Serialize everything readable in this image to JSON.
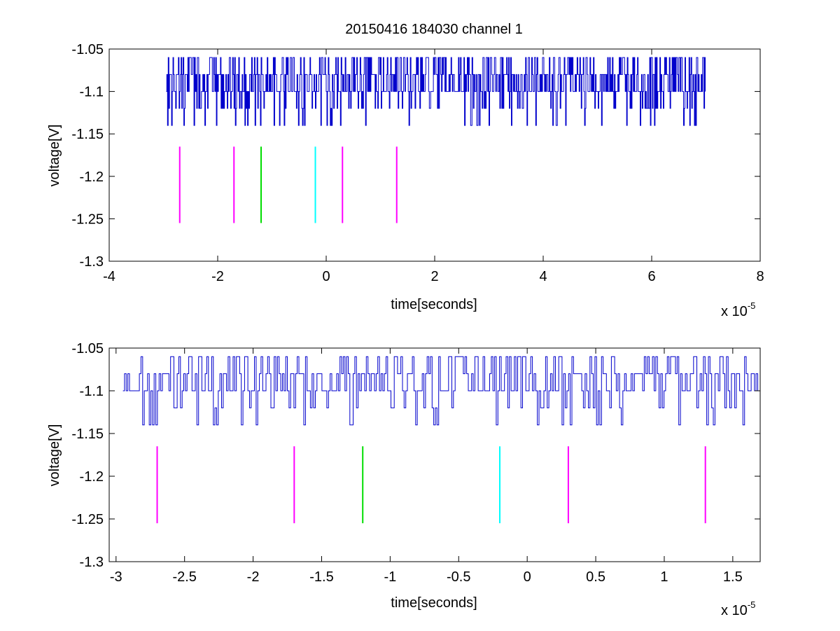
{
  "title": "20150416 184030 channel 1",
  "colors": {
    "signal": "#0000cc",
    "magenta": "#ff00ff",
    "green": "#00dd00",
    "cyan": "#00ffff"
  },
  "chart_data": [
    {
      "type": "line",
      "xlabel": "time[seconds]",
      "ylabel": "voltage[V]",
      "x_exponent_label": "x 10",
      "x_exponent": "-5",
      "xlim": [
        -4,
        8
      ],
      "ylim": [
        -1.3,
        -1.05
      ],
      "xticks": [
        -4,
        -2,
        0,
        2,
        4,
        6,
        8
      ],
      "xtick_labels": [
        "-4",
        "-2",
        "0",
        "2",
        "4",
        "6",
        "8"
      ],
      "yticks": [
        -1.3,
        -1.25,
        -1.2,
        -1.15,
        -1.1,
        -1.05
      ],
      "ytick_labels": [
        "-1.3",
        "-1.25",
        "-1.2",
        "-1.15",
        "-1.1",
        "-1.05"
      ],
      "signal_range": [
        -2.95,
        7.0
      ],
      "signal_levels": [
        -1.14,
        -1.12,
        -1.1,
        -1.08,
        -1.06
      ],
      "markers": [
        {
          "x": -2.7,
          "color": "magenta"
        },
        {
          "x": -1.7,
          "color": "magenta"
        },
        {
          "x": -1.2,
          "color": "green"
        },
        {
          "x": -0.2,
          "color": "cyan"
        },
        {
          "x": 0.3,
          "color": "magenta"
        },
        {
          "x": 1.3,
          "color": "magenta"
        }
      ],
      "marker_yrange": [
        -1.255,
        -1.165
      ]
    },
    {
      "type": "line",
      "xlabel": "time[seconds]",
      "ylabel": "voltage[V]",
      "x_exponent_label": "x 10",
      "x_exponent": "-5",
      "xlim": [
        -3.05,
        1.7
      ],
      "ylim": [
        -1.3,
        -1.05
      ],
      "xticks": [
        -3,
        -2.5,
        -2,
        -1.5,
        -1,
        -0.5,
        0,
        0.5,
        1,
        1.5
      ],
      "xtick_labels": [
        "-3",
        "-2.5",
        "-2",
        "-1.5",
        "-1",
        "-0.5",
        "0",
        "0.5",
        "1",
        "1.5"
      ],
      "yticks": [
        -1.3,
        -1.25,
        -1.2,
        -1.15,
        -1.1,
        -1.05
      ],
      "ytick_labels": [
        "-1.3",
        "-1.25",
        "-1.2",
        "-1.15",
        "-1.1",
        "-1.05"
      ],
      "signal_range": [
        -2.95,
        1.7
      ],
      "signal_levels": [
        -1.14,
        -1.12,
        -1.1,
        -1.08,
        -1.06
      ],
      "markers": [
        {
          "x": -2.7,
          "color": "magenta"
        },
        {
          "x": -1.7,
          "color": "magenta"
        },
        {
          "x": -1.2,
          "color": "green"
        },
        {
          "x": -0.2,
          "color": "cyan"
        },
        {
          "x": 0.3,
          "color": "magenta"
        },
        {
          "x": 1.3,
          "color": "magenta"
        }
      ],
      "marker_yrange": [
        -1.255,
        -1.165
      ]
    }
  ]
}
